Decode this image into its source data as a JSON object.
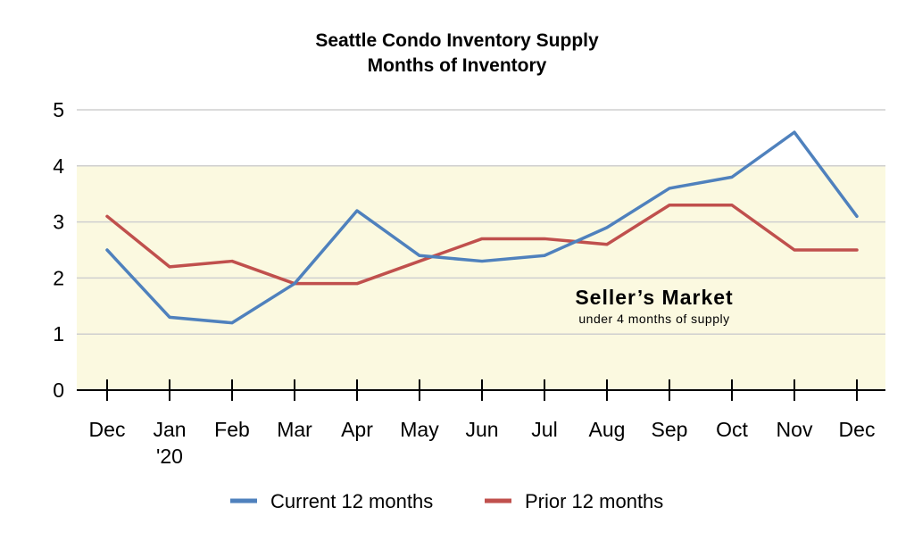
{
  "chart_data": {
    "type": "line",
    "title": "Seattle Condo Inventory Supply",
    "subtitle": "Months of Inventory",
    "categories": [
      "Dec",
      "Jan",
      "Feb",
      "Mar",
      "Apr",
      "May",
      "Jun",
      "Jul",
      "Aug",
      "Sep",
      "Oct",
      "Nov",
      "Dec"
    ],
    "category_sublabels": [
      "",
      "'20",
      "",
      "",
      "",
      "",
      "",
      "",
      "",
      "",
      "",
      "",
      ""
    ],
    "y_ticks": [
      "0",
      "1",
      "2",
      "3",
      "4",
      "5"
    ],
    "ylim": [
      0,
      5
    ],
    "grid": true,
    "shaded_band": {
      "from": 0,
      "to": 4,
      "color": "#fbf9e0",
      "label": "Seller’s Market",
      "sublabel": "under 4 months of supply"
    },
    "series": [
      {
        "name": "Current 12 months",
        "color": "#4f81bd",
        "values": [
          2.5,
          1.3,
          1.2,
          1.9,
          3.2,
          2.4,
          2.3,
          2.4,
          2.9,
          3.6,
          3.8,
          4.6,
          3.1
        ]
      },
      {
        "name": "Prior 12 months",
        "color": "#c0504d",
        "values": [
          3.1,
          2.2,
          2.3,
          1.9,
          1.9,
          2.3,
          2.7,
          2.7,
          2.6,
          3.3,
          3.3,
          2.5,
          2.5
        ]
      }
    ],
    "legend_position": "bottom"
  }
}
